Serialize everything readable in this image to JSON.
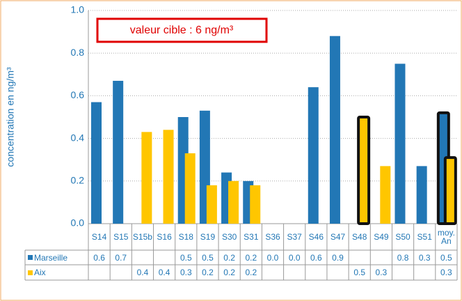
{
  "chart_data": {
    "type": "bar",
    "annotation": "valeur cible : 6 ng/m³",
    "y_label": "concentration en ng/m³",
    "categories": [
      "S14",
      "S15",
      "S15b",
      "S16",
      "S18",
      "S19",
      "S30",
      "S31",
      "S36",
      "S37",
      "S46",
      "S47",
      "S48",
      "S49",
      "S50",
      "S51",
      "moy. An"
    ],
    "series": [
      {
        "name": "Marseille",
        "color": "#2277b5",
        "values": [
          0.57,
          0.67,
          null,
          null,
          0.5,
          0.53,
          0.24,
          0.2,
          0,
          0,
          0.64,
          0.88,
          null,
          null,
          0.75,
          0.27,
          0.52
        ],
        "value_labels": [
          "0.6",
          "0.7",
          null,
          null,
          "0.5",
          "0.5",
          "0.2",
          "0.2",
          "0.0",
          "0.0",
          "0.6",
          "0.9",
          null,
          null,
          "0.8",
          "0.3",
          "0.5"
        ],
        "highlighted": [
          16
        ]
      },
      {
        "name": "Aix",
        "color": "#ffc600",
        "values": [
          null,
          null,
          0.43,
          0.44,
          0.33,
          0.18,
          0.2,
          0.18,
          null,
          null,
          null,
          null,
          0.5,
          0.27,
          null,
          null,
          0.31
        ],
        "value_labels": [
          null,
          null,
          "0.4",
          "0.4",
          "0.3",
          "0.2",
          "0.2",
          "0.2",
          null,
          null,
          null,
          null,
          "0.5",
          "0.3",
          null,
          null,
          "0.3"
        ],
        "highlighted": [
          12,
          16
        ]
      }
    ],
    "ylim": [
      0,
      1
    ],
    "yticks": [
      {
        "value": 0,
        "label": "0.0"
      },
      0.2,
      0.4,
      0.6,
      0.8,
      {
        "value": 1,
        "label": "1.0"
      }
    ],
    "grid": true
  }
}
